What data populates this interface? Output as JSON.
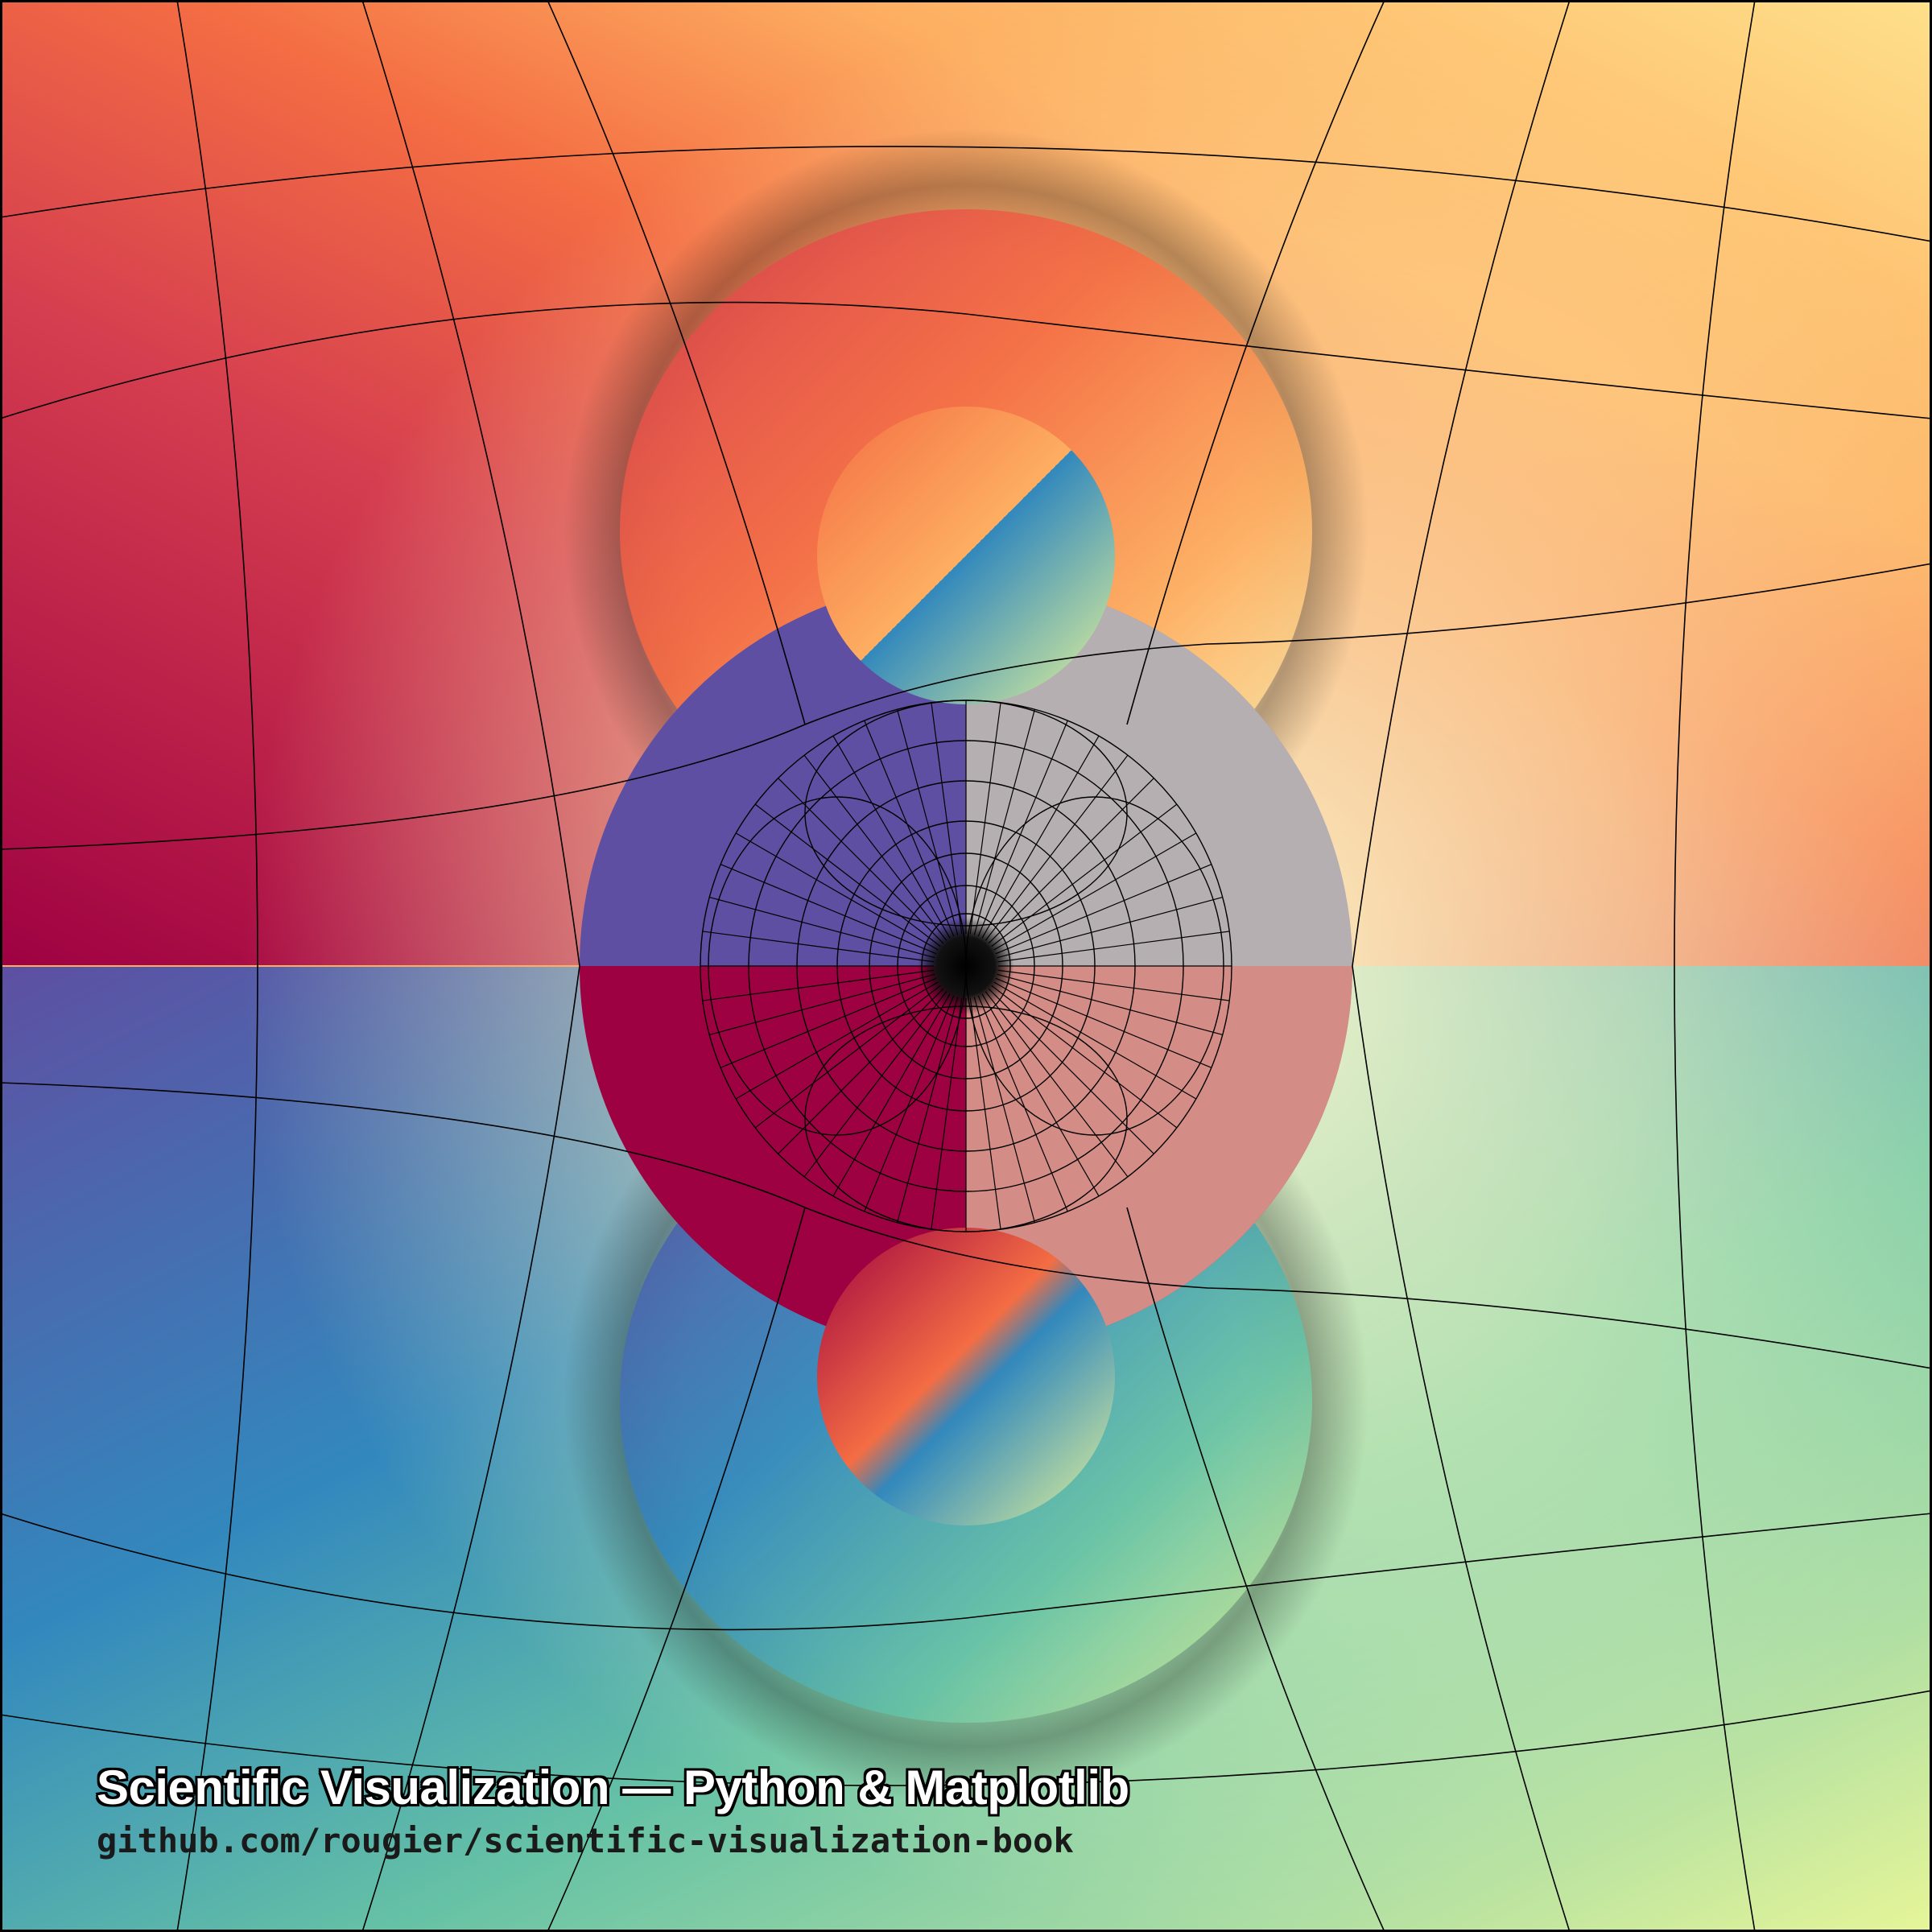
{
  "caption": {
    "title": "Scientific Visualization — Python & Matplotlib",
    "url": "github.com/rougier/scientific-visualization-book"
  },
  "colors": {
    "red": "#9e0142",
    "orange": "#f46d43",
    "gold": "#fdae61",
    "cream": "#ffffbf",
    "lime": "#e6f598",
    "teal": "#66c2a5",
    "blue": "#3288bd",
    "purple": "#5e4fa2",
    "gridline": "#000000"
  }
}
